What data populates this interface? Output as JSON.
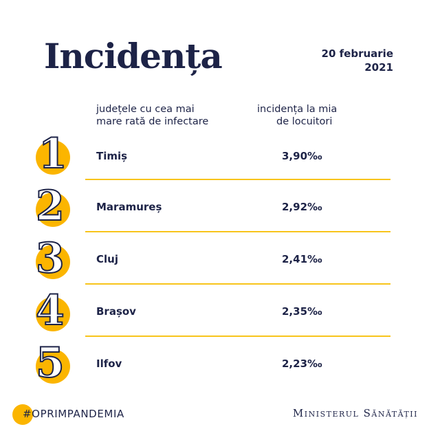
{
  "header": {
    "title": "Incidența",
    "date_line1": "20 februarie",
    "date_line2": "2021"
  },
  "columns": {
    "left_line1": "județele cu cea mai",
    "left_line2": "mare rată de infectare",
    "right_line1": "incidența la mia",
    "right_line2": "de locuitori"
  },
  "rows": [
    {
      "rank": "1",
      "county": "Timiș",
      "value": "3,90‰"
    },
    {
      "rank": "2",
      "county": "Maramureș",
      "value": "2,92‰"
    },
    {
      "rank": "3",
      "county": "Cluj",
      "value": "2,41‰"
    },
    {
      "rank": "4",
      "county": "Brașov",
      "value": "2,35‰"
    },
    {
      "rank": "5",
      "county": "Ilfov",
      "value": "2,23‰"
    }
  ],
  "footer": {
    "hashtag": "#OPRIMPANDEMIA",
    "ministry": "Ministerul Sănătății"
  },
  "colors": {
    "accent": "#fbb500",
    "text": "#1d2347"
  }
}
